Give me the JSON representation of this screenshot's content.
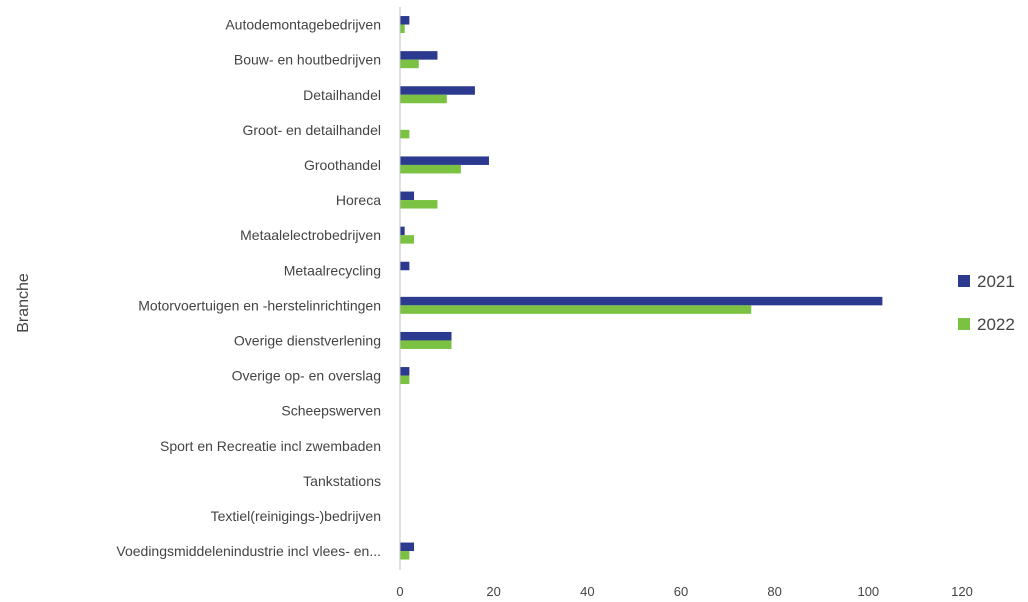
{
  "chart_data": {
    "type": "bar",
    "orientation": "horizontal",
    "title": "",
    "xlabel": "",
    "ylabel": "Branche",
    "xlim": [
      0,
      120
    ],
    "xticks": [
      "0",
      "20",
      "40",
      "60",
      "80",
      "100",
      "120"
    ],
    "grid": false,
    "legend_position": "right",
    "categories": [
      "Autodemontagebedrijven",
      "Bouw- en houtbedrijven",
      "Detailhandel",
      "Groot- en detailhandel",
      "Groothandel",
      "Horeca",
      "Metaalelectrobedrijven",
      "Metaalrecycling",
      "Motorvoertuigen en -herstelinrichtingen",
      "Overige dienstverlening",
      "Overige op- en overslag",
      "Scheepswerven",
      "Sport en Recreatie incl zwembaden",
      "Tankstations",
      "Textiel(reinigings-)bedrijven",
      "Voedingsmiddelenindustrie incl vlees- en..."
    ],
    "series": [
      {
        "name": "2021",
        "color": "#2b3a8f",
        "values": [
          2,
          8,
          16,
          0,
          19,
          3,
          1,
          2,
          103,
          11,
          2,
          0,
          0,
          0,
          0,
          3
        ]
      },
      {
        "name": "2022",
        "color": "#7cc242",
        "values": [
          1,
          4,
          10,
          2,
          13,
          8,
          3,
          0,
          75,
          11,
          2,
          0,
          0,
          0,
          0,
          2
        ]
      }
    ]
  }
}
